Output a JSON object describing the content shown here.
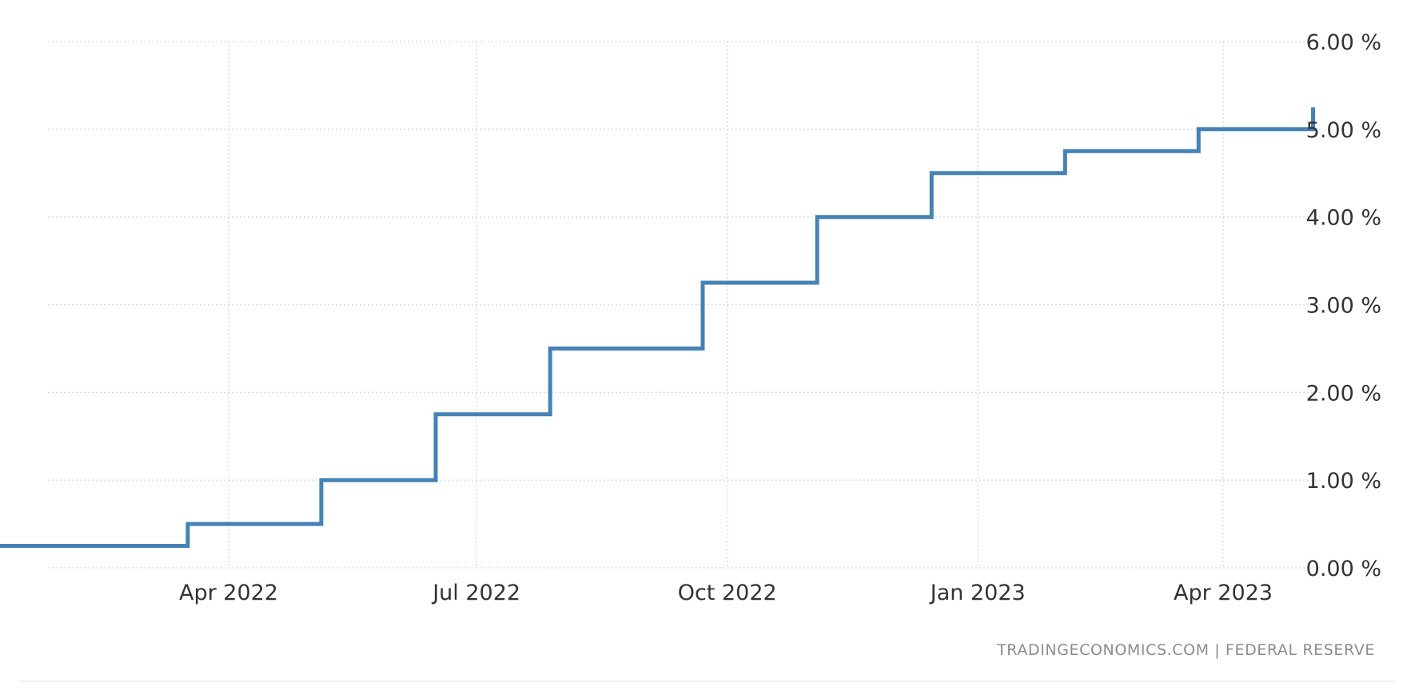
{
  "chart_data": {
    "type": "line",
    "step": true,
    "title": "",
    "xlabel": "",
    "ylabel": "",
    "ylim": [
      0,
      6
    ],
    "xlim": [
      "2022-01-01",
      "2023-05-05"
    ],
    "grid": true,
    "legend": "none",
    "y_axis_side": "right",
    "y_ticks": [
      {
        "value": 0,
        "label": "0.00 %"
      },
      {
        "value": 1,
        "label": "1.00 %"
      },
      {
        "value": 2,
        "label": "2.00 %"
      },
      {
        "value": 3,
        "label": "3.00 %"
      },
      {
        "value": 4,
        "label": "4.00 %"
      },
      {
        "value": 5,
        "label": "5.00 %"
      },
      {
        "value": 6,
        "label": "6.00 %"
      }
    ],
    "x_ticks": [
      {
        "value": "2022-04-01",
        "label": "Apr 2022"
      },
      {
        "value": "2022-07-01",
        "label": "Jul 2022"
      },
      {
        "value": "2022-10-01",
        "label": "Oct 2022"
      },
      {
        "value": "2023-01-01",
        "label": "Jan 2023"
      },
      {
        "value": "2023-04-01",
        "label": "Apr 2023"
      }
    ],
    "series": [
      {
        "color": "#4682b4",
        "points": [
          {
            "x": "2022-01-01",
            "y": 0.25
          },
          {
            "x": "2022-03-17",
            "y": 0.5
          },
          {
            "x": "2022-05-05",
            "y": 1.0
          },
          {
            "x": "2022-06-16",
            "y": 1.75
          },
          {
            "x": "2022-07-28",
            "y": 2.5
          },
          {
            "x": "2022-09-22",
            "y": 3.25
          },
          {
            "x": "2022-11-03",
            "y": 4.0
          },
          {
            "x": "2022-12-15",
            "y": 4.5
          },
          {
            "x": "2023-02-02",
            "y": 4.75
          },
          {
            "x": "2023-03-23",
            "y": 5.0
          },
          {
            "x": "2023-05-04",
            "y": 5.25
          }
        ],
        "end": "2023-05-04"
      }
    ]
  },
  "source": {
    "text": "TRADINGECONOMICS.COM  |  FEDERAL RESERVE"
  }
}
